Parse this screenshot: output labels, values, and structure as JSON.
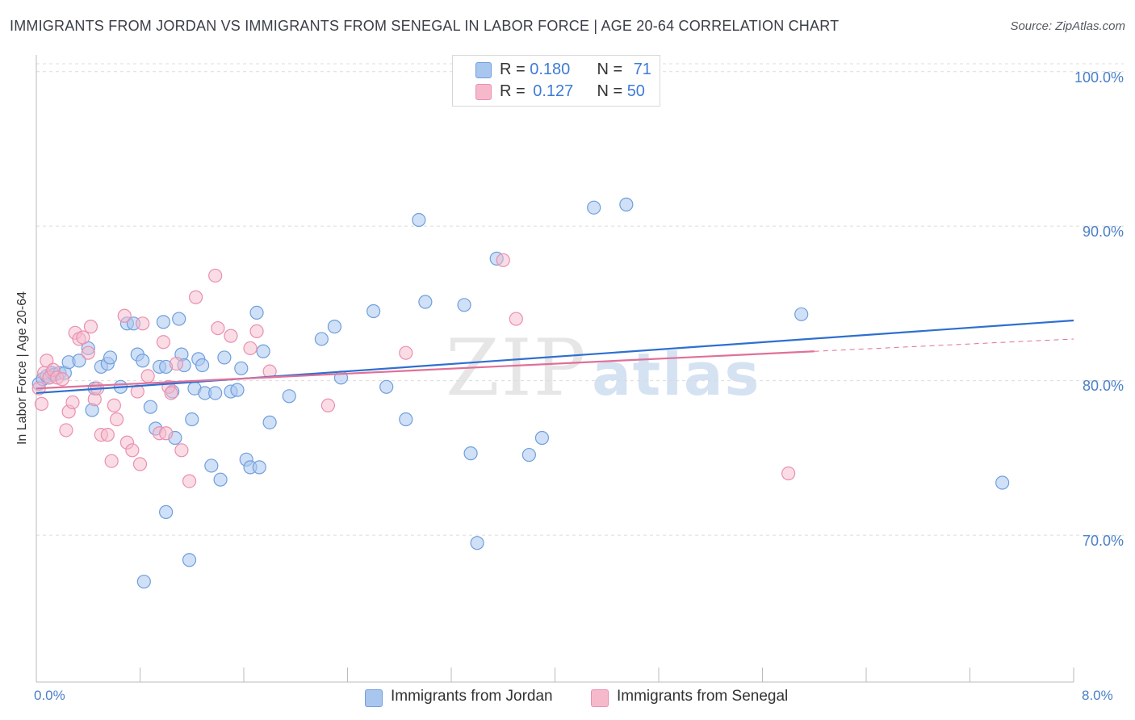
{
  "header": {
    "title": "IMMIGRANTS FROM JORDAN VS IMMIGRANTS FROM SENEGAL IN LABOR FORCE | AGE 20-64 CORRELATION CHART",
    "source": "Source: ZipAtlas.com"
  },
  "watermark": {
    "zip": "ZIP",
    "atlas": "atlas"
  },
  "colors": {
    "jordan_fill": "#a9c6ee",
    "jordan_stroke": "#6f9fdd",
    "jordan_line": "#2e6fd0",
    "senegal_fill": "#f6b9cc",
    "senegal_stroke": "#ea8fb0",
    "senegal_line": "#e07099"
  },
  "legend": {
    "jordan": {
      "r_label": "R = ",
      "r_value": "0.180",
      "n_label": "N = ",
      "n_value": "71"
    },
    "senegal": {
      "r_label": "R = ",
      "r_value": "0.127",
      "n_label": "N = ",
      "n_value": "50"
    }
  },
  "chart_data": {
    "type": "scatter",
    "title": "IMMIGRANTS FROM JORDAN VS IMMIGRANTS FROM SENEGAL IN LABOR FORCE | AGE 20-64 CORRELATION CHART",
    "xlabel": "",
    "ylabel": "In Labor Force | Age 20-64",
    "xlim": [
      0,
      8
    ],
    "ylim": [
      60.5,
      101.5
    ],
    "x_tick_labels": [
      {
        "value": 0,
        "label": "0.0%"
      },
      {
        "value": 8,
        "label": "8.0%"
      }
    ],
    "y_tick_labels": [
      {
        "value": 100,
        "label": "100.0%"
      },
      {
        "value": 90,
        "label": "90.0%"
      },
      {
        "value": 80,
        "label": "80.0%"
      },
      {
        "value": 70,
        "label": "70.0%"
      }
    ],
    "series": [
      {
        "name": "Immigrants from Jordan",
        "R": 0.18,
        "N": 71,
        "trend": {
          "x": [
            0.0,
            8.0
          ],
          "y": [
            79.2,
            83.9
          ]
        },
        "points": [
          [
            0.02,
            79.8
          ],
          [
            0.05,
            80.1
          ],
          [
            0.08,
            80.3
          ],
          [
            0.1,
            80.2
          ],
          [
            0.12,
            80.5
          ],
          [
            0.14,
            80.4
          ],
          [
            0.18,
            80.5
          ],
          [
            0.22,
            80.5
          ],
          [
            0.25,
            81.2
          ],
          [
            0.33,
            81.3
          ],
          [
            0.4,
            82.1
          ],
          [
            0.43,
            78.1
          ],
          [
            0.45,
            79.5
          ],
          [
            0.5,
            80.9
          ],
          [
            0.55,
            81.1
          ],
          [
            0.57,
            81.5
          ],
          [
            0.65,
            79.6
          ],
          [
            0.7,
            83.7
          ],
          [
            0.75,
            83.7
          ],
          [
            0.78,
            81.7
          ],
          [
            0.82,
            81.3
          ],
          [
            0.88,
            78.3
          ],
          [
            0.92,
            76.9
          ],
          [
            0.95,
            80.9
          ],
          [
            0.98,
            83.8
          ],
          [
            1.0,
            80.9
          ],
          [
            1.05,
            79.3
          ],
          [
            1.07,
            76.3
          ],
          [
            1.1,
            84.0
          ],
          [
            1.12,
            81.7
          ],
          [
            1.14,
            81.0
          ],
          [
            1.18,
            68.4
          ],
          [
            1.2,
            77.5
          ],
          [
            1.22,
            79.5
          ],
          [
            1.25,
            81.4
          ],
          [
            1.28,
            81.0
          ],
          [
            1.3,
            79.2
          ],
          [
            1.35,
            74.5
          ],
          [
            1.38,
            79.2
          ],
          [
            1.42,
            73.6
          ],
          [
            1.45,
            81.5
          ],
          [
            1.5,
            79.3
          ],
          [
            1.55,
            79.4
          ],
          [
            1.58,
            80.8
          ],
          [
            1.62,
            74.9
          ],
          [
            1.65,
            74.4
          ],
          [
            1.7,
            84.4
          ],
          [
            1.72,
            74.4
          ],
          [
            1.75,
            81.9
          ],
          [
            1.8,
            77.3
          ],
          [
            1.95,
            79.0
          ],
          [
            2.2,
            82.7
          ],
          [
            2.3,
            83.5
          ],
          [
            2.35,
            80.2
          ],
          [
            2.6,
            84.5
          ],
          [
            2.7,
            79.6
          ],
          [
            2.85,
            77.5
          ],
          [
            2.95,
            90.4
          ],
          [
            3.0,
            85.1
          ],
          [
            3.3,
            84.9
          ],
          [
            3.35,
            75.3
          ],
          [
            3.4,
            69.5
          ],
          [
            3.55,
            87.9
          ],
          [
            3.8,
            75.2
          ],
          [
            3.9,
            76.3
          ],
          [
            4.3,
            91.2
          ],
          [
            4.55,
            91.4
          ],
          [
            1.0,
            71.5
          ],
          [
            0.83,
            67.0
          ],
          [
            5.9,
            84.3
          ],
          [
            7.45,
            73.4
          ]
        ]
      },
      {
        "name": "Immigrants from Senegal",
        "R": 0.127,
        "N": 50,
        "trend": {
          "x": [
            0.0,
            6.0
          ],
          "y": [
            79.5,
            81.9
          ]
        },
        "trend_dashed": {
          "x": [
            6.0,
            8.0
          ],
          "y": [
            81.9,
            82.7
          ]
        },
        "points": [
          [
            0.02,
            79.5
          ],
          [
            0.04,
            78.5
          ],
          [
            0.06,
            80.5
          ],
          [
            0.08,
            81.3
          ],
          [
            0.1,
            80.2
          ],
          [
            0.13,
            80.7
          ],
          [
            0.16,
            80.2
          ],
          [
            0.2,
            80.1
          ],
          [
            0.23,
            76.8
          ],
          [
            0.25,
            78.0
          ],
          [
            0.28,
            78.6
          ],
          [
            0.3,
            83.1
          ],
          [
            0.33,
            82.7
          ],
          [
            0.36,
            82.8
          ],
          [
            0.4,
            81.8
          ],
          [
            0.42,
            83.5
          ],
          [
            0.45,
            78.8
          ],
          [
            0.47,
            79.5
          ],
          [
            0.5,
            76.5
          ],
          [
            0.55,
            76.5
          ],
          [
            0.58,
            74.8
          ],
          [
            0.6,
            78.4
          ],
          [
            0.62,
            77.5
          ],
          [
            0.68,
            84.2
          ],
          [
            0.7,
            76.0
          ],
          [
            0.74,
            75.5
          ],
          [
            0.78,
            79.3
          ],
          [
            0.8,
            74.6
          ],
          [
            0.82,
            83.7
          ],
          [
            0.86,
            80.3
          ],
          [
            0.95,
            76.6
          ],
          [
            0.98,
            82.5
          ],
          [
            1.02,
            79.6
          ],
          [
            1.04,
            79.2
          ],
          [
            1.08,
            81.1
          ],
          [
            1.12,
            75.5
          ],
          [
            1.18,
            73.5
          ],
          [
            1.23,
            85.4
          ],
          [
            1.38,
            86.8
          ],
          [
            1.4,
            83.4
          ],
          [
            1.5,
            82.9
          ],
          [
            1.65,
            82.1
          ],
          [
            1.7,
            83.2
          ],
          [
            1.8,
            80.6
          ],
          [
            2.25,
            78.4
          ],
          [
            2.85,
            81.8
          ],
          [
            3.6,
            87.8
          ],
          [
            3.7,
            84.0
          ],
          [
            5.8,
            74.0
          ],
          [
            1.0,
            76.6
          ]
        ]
      }
    ],
    "legend": [
      "Immigrants from Jordan",
      "Immigrants from Senegal"
    ],
    "grid": "horizontal dashed"
  }
}
